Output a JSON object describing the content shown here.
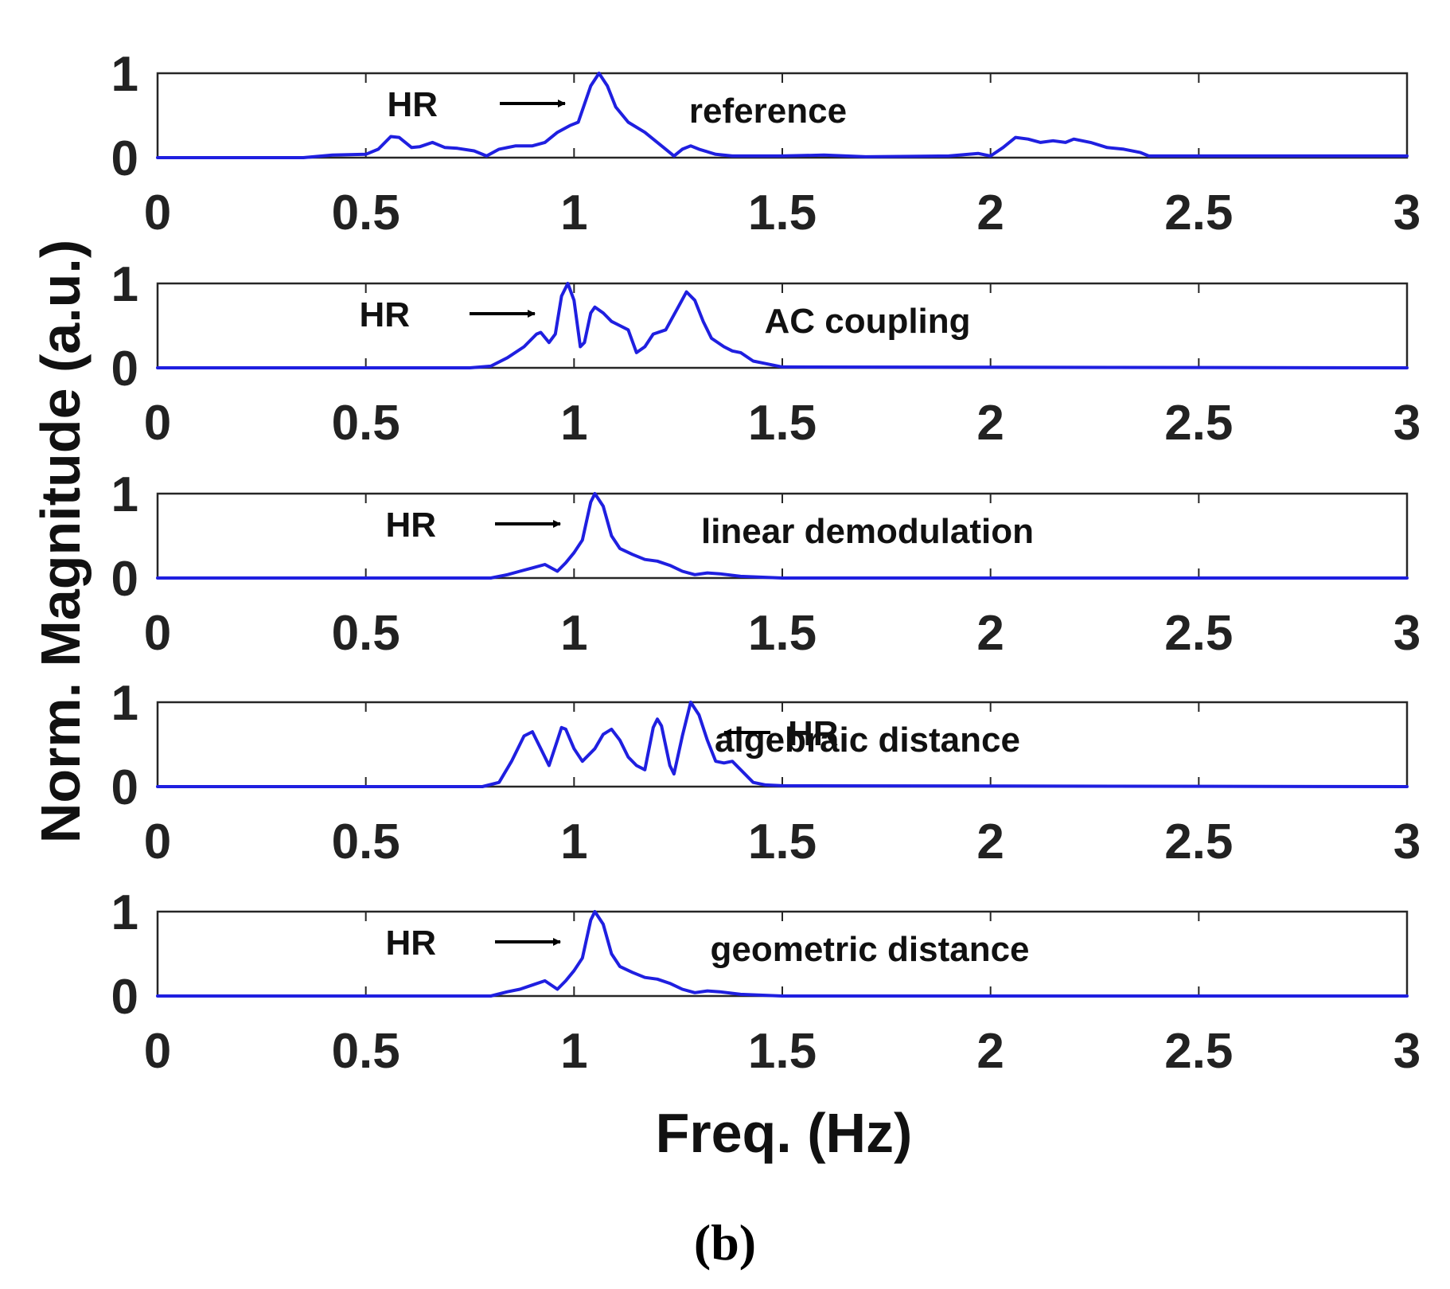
{
  "chart_data": {
    "type": "line",
    "xlabel": "Freq. (Hz)",
    "ylabel": "Norm. Magnitude (a.u.)",
    "caption": "(b)",
    "line_color": "#1f1fe0",
    "xlim": [
      0,
      3
    ],
    "ylim": [
      0,
      1
    ],
    "x_ticks": [
      "0",
      "0.5",
      "1",
      "1.5",
      "2",
      "2.5",
      "3"
    ],
    "y_ticks": [
      "0",
      "1"
    ],
    "panels": [
      {
        "label": "reference",
        "hr_label": "HR",
        "hr_arrow": "right",
        "hr_freq": 1.06,
        "points": [
          [
            0,
            0
          ],
          [
            0.35,
            0
          ],
          [
            0.42,
            0.03
          ],
          [
            0.5,
            0.04
          ],
          [
            0.53,
            0.1
          ],
          [
            0.56,
            0.25
          ],
          [
            0.58,
            0.24
          ],
          [
            0.61,
            0.12
          ],
          [
            0.63,
            0.13
          ],
          [
            0.66,
            0.18
          ],
          [
            0.69,
            0.12
          ],
          [
            0.72,
            0.11
          ],
          [
            0.76,
            0.08
          ],
          [
            0.79,
            0.02
          ],
          [
            0.82,
            0.1
          ],
          [
            0.86,
            0.14
          ],
          [
            0.9,
            0.14
          ],
          [
            0.93,
            0.18
          ],
          [
            0.96,
            0.3
          ],
          [
            0.99,
            0.38
          ],
          [
            1.01,
            0.42
          ],
          [
            1.04,
            0.85
          ],
          [
            1.06,
            1
          ],
          [
            1.08,
            0.85
          ],
          [
            1.1,
            0.6
          ],
          [
            1.13,
            0.42
          ],
          [
            1.17,
            0.3
          ],
          [
            1.2,
            0.18
          ],
          [
            1.22,
            0.1
          ],
          [
            1.24,
            0.02
          ],
          [
            1.26,
            0.1
          ],
          [
            1.28,
            0.14
          ],
          [
            1.3,
            0.1
          ],
          [
            1.34,
            0.04
          ],
          [
            1.38,
            0.02
          ],
          [
            1.5,
            0.02
          ],
          [
            1.6,
            0.03
          ],
          [
            1.7,
            0.01
          ],
          [
            1.9,
            0.02
          ],
          [
            1.97,
            0.05
          ],
          [
            2.0,
            0.02
          ],
          [
            2.03,
            0.12
          ],
          [
            2.06,
            0.24
          ],
          [
            2.09,
            0.22
          ],
          [
            2.12,
            0.18
          ],
          [
            2.15,
            0.2
          ],
          [
            2.18,
            0.18
          ],
          [
            2.2,
            0.22
          ],
          [
            2.24,
            0.18
          ],
          [
            2.28,
            0.12
          ],
          [
            2.32,
            0.1
          ],
          [
            2.36,
            0.06
          ],
          [
            2.38,
            0.02
          ],
          [
            2.5,
            0.02
          ],
          [
            2.8,
            0.02
          ],
          [
            3,
            0.02
          ]
        ]
      },
      {
        "label": "AC coupling",
        "hr_label": "HR",
        "hr_arrow": "right",
        "hr_freq": 0.98,
        "points": [
          [
            0,
            0
          ],
          [
            0.75,
            0
          ],
          [
            0.8,
            0.02
          ],
          [
            0.84,
            0.12
          ],
          [
            0.88,
            0.25
          ],
          [
            0.91,
            0.4
          ],
          [
            0.92,
            0.42
          ],
          [
            0.94,
            0.3
          ],
          [
            0.955,
            0.4
          ],
          [
            0.97,
            0.85
          ],
          [
            0.985,
            1
          ],
          [
            1.0,
            0.8
          ],
          [
            1.015,
            0.25
          ],
          [
            1.025,
            0.3
          ],
          [
            1.04,
            0.65
          ],
          [
            1.05,
            0.72
          ],
          [
            1.07,
            0.65
          ],
          [
            1.09,
            0.55
          ],
          [
            1.11,
            0.5
          ],
          [
            1.13,
            0.45
          ],
          [
            1.15,
            0.18
          ],
          [
            1.17,
            0.25
          ],
          [
            1.19,
            0.4
          ],
          [
            1.22,
            0.45
          ],
          [
            1.25,
            0.72
          ],
          [
            1.27,
            0.9
          ],
          [
            1.29,
            0.8
          ],
          [
            1.31,
            0.55
          ],
          [
            1.33,
            0.35
          ],
          [
            1.36,
            0.25
          ],
          [
            1.38,
            0.2
          ],
          [
            1.4,
            0.18
          ],
          [
            1.43,
            0.08
          ],
          [
            1.46,
            0.05
          ],
          [
            1.5,
            0.01
          ],
          [
            3,
            0
          ]
        ]
      },
      {
        "label": "linear demodulation",
        "hr_label": "HR",
        "hr_arrow": "right",
        "hr_freq": 1.05,
        "points": [
          [
            0,
            0
          ],
          [
            0.8,
            0
          ],
          [
            0.84,
            0.04
          ],
          [
            0.87,
            0.08
          ],
          [
            0.9,
            0.12
          ],
          [
            0.93,
            0.16
          ],
          [
            0.96,
            0.08
          ],
          [
            0.98,
            0.18
          ],
          [
            1.0,
            0.3
          ],
          [
            1.02,
            0.45
          ],
          [
            1.04,
            0.9
          ],
          [
            1.05,
            1
          ],
          [
            1.07,
            0.85
          ],
          [
            1.09,
            0.5
          ],
          [
            1.11,
            0.35
          ],
          [
            1.14,
            0.28
          ],
          [
            1.17,
            0.22
          ],
          [
            1.2,
            0.2
          ],
          [
            1.23,
            0.15
          ],
          [
            1.26,
            0.08
          ],
          [
            1.29,
            0.04
          ],
          [
            1.32,
            0.06
          ],
          [
            1.35,
            0.05
          ],
          [
            1.4,
            0.02
          ],
          [
            1.5,
            0
          ],
          [
            3,
            0
          ]
        ]
      },
      {
        "label": "algebraic distance",
        "hr_label": "HR",
        "hr_arrow": "left",
        "hr_freq": 1.28,
        "points": [
          [
            0,
            0
          ],
          [
            0.78,
            0
          ],
          [
            0.82,
            0.05
          ],
          [
            0.85,
            0.3
          ],
          [
            0.88,
            0.6
          ],
          [
            0.9,
            0.65
          ],
          [
            0.92,
            0.45
          ],
          [
            0.94,
            0.25
          ],
          [
            0.96,
            0.55
          ],
          [
            0.97,
            0.7
          ],
          [
            0.98,
            0.68
          ],
          [
            1.0,
            0.45
          ],
          [
            1.02,
            0.3
          ],
          [
            1.05,
            0.45
          ],
          [
            1.07,
            0.62
          ],
          [
            1.09,
            0.68
          ],
          [
            1.11,
            0.55
          ],
          [
            1.13,
            0.35
          ],
          [
            1.15,
            0.25
          ],
          [
            1.17,
            0.2
          ],
          [
            1.19,
            0.7
          ],
          [
            1.2,
            0.8
          ],
          [
            1.21,
            0.72
          ],
          [
            1.23,
            0.25
          ],
          [
            1.24,
            0.15
          ],
          [
            1.26,
            0.6
          ],
          [
            1.28,
            1
          ],
          [
            1.3,
            0.85
          ],
          [
            1.32,
            0.55
          ],
          [
            1.34,
            0.3
          ],
          [
            1.36,
            0.28
          ],
          [
            1.38,
            0.3
          ],
          [
            1.4,
            0.2
          ],
          [
            1.43,
            0.05
          ],
          [
            1.46,
            0.02
          ],
          [
            1.5,
            0.01
          ],
          [
            3,
            0
          ]
        ]
      },
      {
        "label": "geometric distance",
        "hr_label": "HR",
        "hr_arrow": "right",
        "hr_freq": 1.05,
        "points": [
          [
            0,
            0
          ],
          [
            0.8,
            0
          ],
          [
            0.84,
            0.05
          ],
          [
            0.87,
            0.08
          ],
          [
            0.9,
            0.13
          ],
          [
            0.93,
            0.18
          ],
          [
            0.96,
            0.08
          ],
          [
            0.98,
            0.18
          ],
          [
            1.0,
            0.3
          ],
          [
            1.02,
            0.45
          ],
          [
            1.04,
            0.9
          ],
          [
            1.05,
            1
          ],
          [
            1.07,
            0.85
          ],
          [
            1.09,
            0.5
          ],
          [
            1.11,
            0.35
          ],
          [
            1.14,
            0.28
          ],
          [
            1.17,
            0.22
          ],
          [
            1.2,
            0.2
          ],
          [
            1.23,
            0.15
          ],
          [
            1.26,
            0.08
          ],
          [
            1.29,
            0.04
          ],
          [
            1.32,
            0.06
          ],
          [
            1.35,
            0.05
          ],
          [
            1.4,
            0.02
          ],
          [
            1.5,
            0
          ],
          [
            3,
            0
          ]
        ]
      }
    ]
  }
}
